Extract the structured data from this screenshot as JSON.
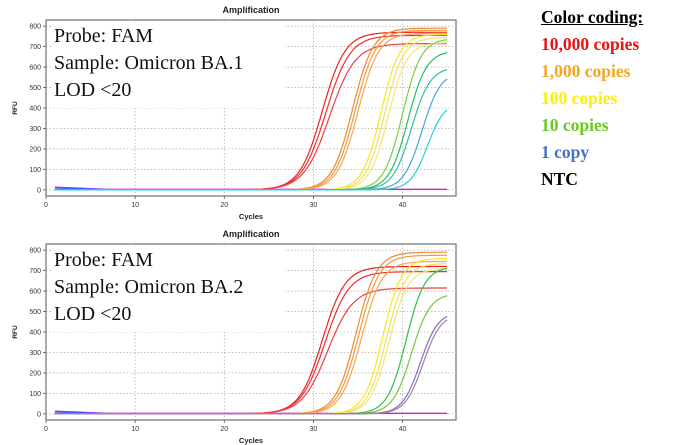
{
  "legend": {
    "title": "Color coding:",
    "items": [
      {
        "label": "10,000 copies",
        "color": "#ee1111"
      },
      {
        "label": "1,000 copies",
        "color": "#f5a623"
      },
      {
        "label": "100 copies",
        "color": "#ffee00"
      },
      {
        "label": "10 copies",
        "color": "#66cc22"
      },
      {
        "label": "1 copy",
        "color": "#4472c4"
      },
      {
        "label": "NTC",
        "color": "#000000"
      }
    ]
  },
  "chart_data": [
    {
      "type": "line",
      "title": "Amplification",
      "xlabel": "Cycles",
      "ylabel": "RFU",
      "xlim": [
        0,
        46
      ],
      "ylim": [
        -30,
        830
      ],
      "xticks": [
        0,
        10,
        20,
        30,
        40
      ],
      "yticks": [
        0,
        100,
        200,
        300,
        400,
        500,
        600,
        700,
        800
      ],
      "grid": true,
      "annotation_lines": [
        "Probe: FAM",
        "Sample: Omicron BA.1",
        "LOD <20"
      ],
      "series": [
        {
          "color": "#ee2020",
          "midpoint": 31.0,
          "plateau": 770,
          "slope": 0.9
        },
        {
          "color": "#ee3030",
          "midpoint": 31.4,
          "plateau": 755,
          "slope": 0.85
        },
        {
          "color": "#f04040",
          "midpoint": 31.8,
          "plateau": 715,
          "slope": 0.8
        },
        {
          "color": "#f08a30",
          "midpoint": 34.4,
          "plateau": 790,
          "slope": 1.0
        },
        {
          "color": "#f29a40",
          "midpoint": 34.7,
          "plateau": 780,
          "slope": 1.0
        },
        {
          "color": "#f4a850",
          "midpoint": 35.0,
          "plateau": 765,
          "slope": 1.0
        },
        {
          "color": "#f7e818",
          "midpoint": 37.6,
          "plateau": 760,
          "slope": 1.1
        },
        {
          "color": "#f2e060",
          "midpoint": 38.0,
          "plateau": 745,
          "slope": 1.1
        },
        {
          "color": "#f0e870",
          "midpoint": 38.4,
          "plateau": 720,
          "slope": 1.1
        },
        {
          "color": "#7ad040",
          "midpoint": 40.0,
          "plateau": 740,
          "slope": 1.1
        },
        {
          "color": "#20c060",
          "midpoint": 40.6,
          "plateau": 680,
          "slope": 1.1
        },
        {
          "color": "#30c0a0",
          "midpoint": 41.0,
          "plateau": 600,
          "slope": 1.1
        },
        {
          "color": "#40a8d8",
          "midpoint": 42.2,
          "plateau": 580,
          "slope": 1.1
        },
        {
          "color": "#20d0e0",
          "midpoint": 42.8,
          "plateau": 430,
          "slope": 1.2
        }
      ],
      "ntc": [
        {
          "color": "#e020e0",
          "start": 14,
          "end": 3
        },
        {
          "color": "#8840ff",
          "start": 10,
          "end": 2
        },
        {
          "color": "#4060ff",
          "start": 8,
          "end": 2
        }
      ]
    },
    {
      "type": "line",
      "title": "Amplification",
      "xlabel": "Cycles",
      "ylabel": "RFU",
      "xlim": [
        0,
        46
      ],
      "ylim": [
        -30,
        830
      ],
      "xticks": [
        0,
        10,
        20,
        30,
        40
      ],
      "yticks": [
        0,
        100,
        200,
        300,
        400,
        500,
        600,
        700,
        800
      ],
      "grid": true,
      "annotation_lines": [
        "Probe: FAM",
        "Sample: Omicron BA.2",
        "LOD <20"
      ],
      "series": [
        {
          "color": "#ee2020",
          "midpoint": 31.0,
          "plateau": 720,
          "slope": 0.9
        },
        {
          "color": "#ee3030",
          "midpoint": 31.3,
          "plateau": 695,
          "slope": 0.85
        },
        {
          "color": "#f04040",
          "midpoint": 31.6,
          "plateau": 615,
          "slope": 0.8
        },
        {
          "color": "#f08a30",
          "midpoint": 34.8,
          "plateau": 790,
          "slope": 1.0
        },
        {
          "color": "#f29a40",
          "midpoint": 35.1,
          "plateau": 775,
          "slope": 1.0
        },
        {
          "color": "#f4a850",
          "midpoint": 35.4,
          "plateau": 745,
          "slope": 1.0
        },
        {
          "color": "#f7e818",
          "midpoint": 37.8,
          "plateau": 760,
          "slope": 1.1
        },
        {
          "color": "#f2e060",
          "midpoint": 38.2,
          "plateau": 735,
          "slope": 1.1
        },
        {
          "color": "#f0e870",
          "midpoint": 38.5,
          "plateau": 710,
          "slope": 1.1
        },
        {
          "color": "#30c040",
          "midpoint": 40.4,
          "plateau": 720,
          "slope": 1.1
        },
        {
          "color": "#70c840",
          "midpoint": 41.0,
          "plateau": 590,
          "slope": 1.1
        },
        {
          "color": "#8070c0",
          "midpoint": 42.0,
          "plateau": 500,
          "slope": 1.15
        },
        {
          "color": "#a080a0",
          "midpoint": 42.3,
          "plateau": 490,
          "slope": 1.15
        }
      ],
      "ntc": [
        {
          "color": "#e020e0",
          "start": 14,
          "end": 3
        },
        {
          "color": "#8840ff",
          "start": 10,
          "end": 2
        },
        {
          "color": "#4060ff",
          "start": 8,
          "end": 2
        }
      ]
    }
  ]
}
